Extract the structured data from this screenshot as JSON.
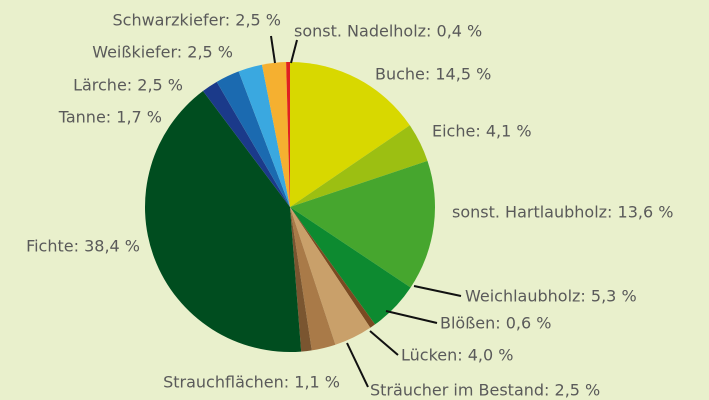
{
  "chart_data": {
    "type": "pie",
    "labels": [
      "Buche: 14,5 %",
      "Eiche: 4,1 %",
      "sonst. Hartlaubholz: 13,6 %",
      "Weichlaubholz: 5,3 %",
      "Blößen: 0,6 %",
      "Lücken: 4,0 %",
      "Sträucher im Bestand: 2,5 %",
      "Strauchflächen: 1,1 %",
      "Fichte: 38,4 %",
      "Tanne: 1,7 %",
      "Lärche: 2,5 %",
      "Weißkiefer: 2,5 %",
      "Schwarzkiefer: 2,5 %",
      "sonst. Nadelholz: 0,4 %"
    ],
    "values": [
      14.5,
      4.1,
      13.6,
      5.3,
      0.6,
      4.0,
      2.5,
      1.1,
      38.4,
      1.7,
      2.5,
      2.5,
      2.5,
      0.4
    ],
    "colors": [
      "#d8d800",
      "#9cbf12",
      "#46a62e",
      "#0d8a30",
      "#7a4a22",
      "#c9a06a",
      "#a97a48",
      "#7a5530",
      "#004d1f",
      "#1b3a8a",
      "#1b6ab0",
      "#3aa8e0",
      "#f5b030",
      "#e02020"
    ]
  }
}
